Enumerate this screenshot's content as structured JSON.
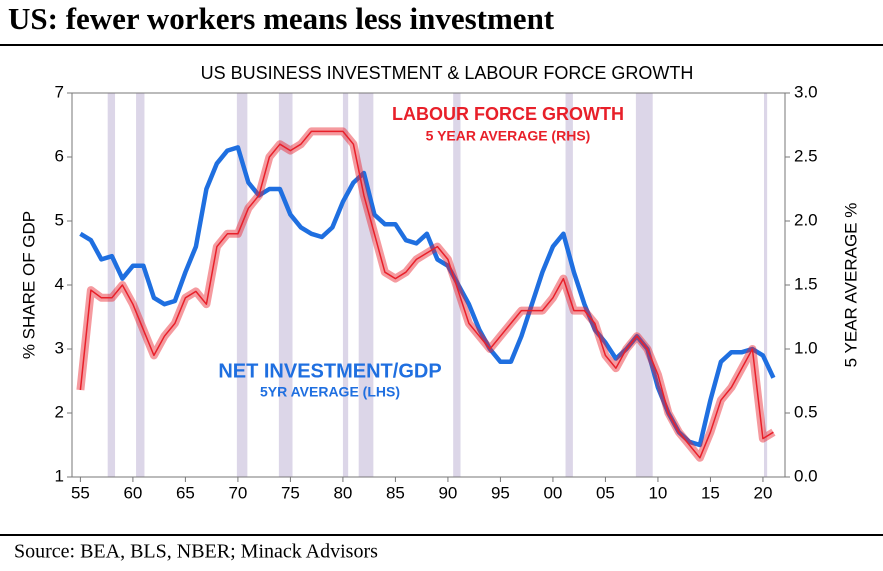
{
  "chart_data": {
    "type": "line",
    "title": "US: fewer workers means less investment",
    "subtitle": "US BUSINESS INVESTMENT & LABOUR FORCE GROWTH",
    "y_label": "% SHARE OF GDP",
    "y2_label": "5 YEAR AVERAGE %",
    "source": "Source: BEA, BLS, NBER; Minack Advisors",
    "annotations": [
      {
        "text": "LABOUR FORCE GROWTH",
        "color": "#e8202a"
      },
      {
        "text": "5 YEAR AVERAGE (RHS)",
        "color": "#e8202a"
      },
      {
        "text": "NET INVESTMENT/GDP",
        "color": "#1f6fe0"
      },
      {
        "text": "5YR AVERAGE (LHS)",
        "color": "#1f6fe0"
      }
    ],
    "x": [
      1955,
      1956,
      1957,
      1958,
      1959,
      1960,
      1961,
      1962,
      1963,
      1964,
      1965,
      1966,
      1967,
      1968,
      1969,
      1970,
      1971,
      1972,
      1973,
      1974,
      1975,
      1976,
      1977,
      1978,
      1979,
      1980,
      1981,
      1982,
      1983,
      1984,
      1985,
      1986,
      1987,
      1988,
      1989,
      1990,
      1991,
      1992,
      1993,
      1994,
      1995,
      1996,
      1997,
      1998,
      1999,
      2000,
      2001,
      2002,
      2003,
      2004,
      2005,
      2006,
      2007,
      2008,
      2009,
      2010,
      2011,
      2012,
      2013,
      2014,
      2015,
      2016,
      2017,
      2018,
      2019,
      2020,
      2021
    ],
    "series": [
      {
        "name": "Net investment/GDP",
        "color": "#1f6fe0",
        "values": [
          4.8,
          4.7,
          4.4,
          4.45,
          4.1,
          4.3,
          4.3,
          3.8,
          3.7,
          3.75,
          4.2,
          4.6,
          5.5,
          5.9,
          6.1,
          6.15,
          5.6,
          5.4,
          5.5,
          5.5,
          5.1,
          4.9,
          4.8,
          4.75,
          4.9,
          5.3,
          5.6,
          5.75,
          5.1,
          4.95,
          4.95,
          4.7,
          4.65,
          4.8,
          4.4,
          4.3,
          4.0,
          3.7,
          3.3,
          3.0,
          2.8,
          2.8,
          3.2,
          3.7,
          4.2,
          4.6,
          4.8,
          4.2,
          3.7,
          3.3,
          3.1,
          2.85,
          3.0,
          3.2,
          3.0,
          2.4,
          2.0,
          1.7,
          1.55,
          1.5,
          2.2,
          2.8,
          2.95,
          2.95,
          3.0,
          2.9,
          2.55
        ]
      },
      {
        "name": "Labour force growth",
        "color": "#e8202a",
        "axis": "y2",
        "values": [
          0.68,
          1.46,
          1.4,
          1.4,
          1.5,
          1.35,
          1.15,
          0.95,
          1.1,
          1.2,
          1.4,
          1.45,
          1.35,
          1.8,
          1.9,
          1.9,
          2.1,
          2.2,
          2.5,
          2.6,
          2.55,
          2.6,
          2.7,
          2.7,
          2.7,
          2.7,
          2.6,
          2.2,
          1.9,
          1.6,
          1.55,
          1.6,
          1.7,
          1.75,
          1.8,
          1.7,
          1.45,
          1.2,
          1.1,
          1.0,
          1.1,
          1.2,
          1.3,
          1.3,
          1.3,
          1.4,
          1.55,
          1.3,
          1.3,
          1.2,
          0.95,
          0.85,
          1.0,
          1.1,
          1.0,
          0.8,
          0.5,
          0.35,
          0.25,
          0.15,
          0.35,
          0.6,
          0.7,
          0.85,
          1.0,
          0.3,
          0.35
        ]
      }
    ],
    "recessions": [
      [
        1957.6,
        1958.3
      ],
      [
        1960.3,
        1961.1
      ],
      [
        1969.9,
        1970.9
      ],
      [
        1973.9,
        1975.2
      ],
      [
        1980.0,
        1980.5
      ],
      [
        1981.5,
        1982.9
      ],
      [
        1990.5,
        1991.2
      ],
      [
        2001.2,
        2001.9
      ],
      [
        2007.9,
        2009.5
      ],
      [
        2020.1,
        2020.4
      ]
    ],
    "recession_color": "#dcd6e8",
    "xlim": [
      1954.2,
      2022.1
    ],
    "xticks": [
      {
        "value": 1955,
        "label": "55"
      },
      {
        "value": 1960,
        "label": "60"
      },
      {
        "value": 1965,
        "label": "65"
      },
      {
        "value": 1970,
        "label": "70"
      },
      {
        "value": 1975,
        "label": "75"
      },
      {
        "value": 1980,
        "label": "80"
      },
      {
        "value": 1985,
        "label": "85"
      },
      {
        "value": 1990,
        "label": "90"
      },
      {
        "value": 1995,
        "label": "95"
      },
      {
        "value": 2000,
        "label": "00"
      },
      {
        "value": 2005,
        "label": "05"
      },
      {
        "value": 2010,
        "label": "10"
      },
      {
        "value": 2015,
        "label": "15"
      },
      {
        "value": 2020,
        "label": "20"
      }
    ],
    "ylim": [
      1,
      7
    ],
    "yticks": [
      1,
      2,
      3,
      4,
      5,
      6,
      7
    ],
    "y2lim": [
      0,
      3
    ],
    "y2ticks": [
      {
        "value": 0,
        "label": "0.0"
      },
      0.5,
      {
        "value": 1,
        "label": "1.0"
      },
      1.5,
      {
        "value": 2,
        "label": "2.0"
      },
      2.5,
      {
        "value": 3,
        "label": "3.0"
      }
    ]
  }
}
